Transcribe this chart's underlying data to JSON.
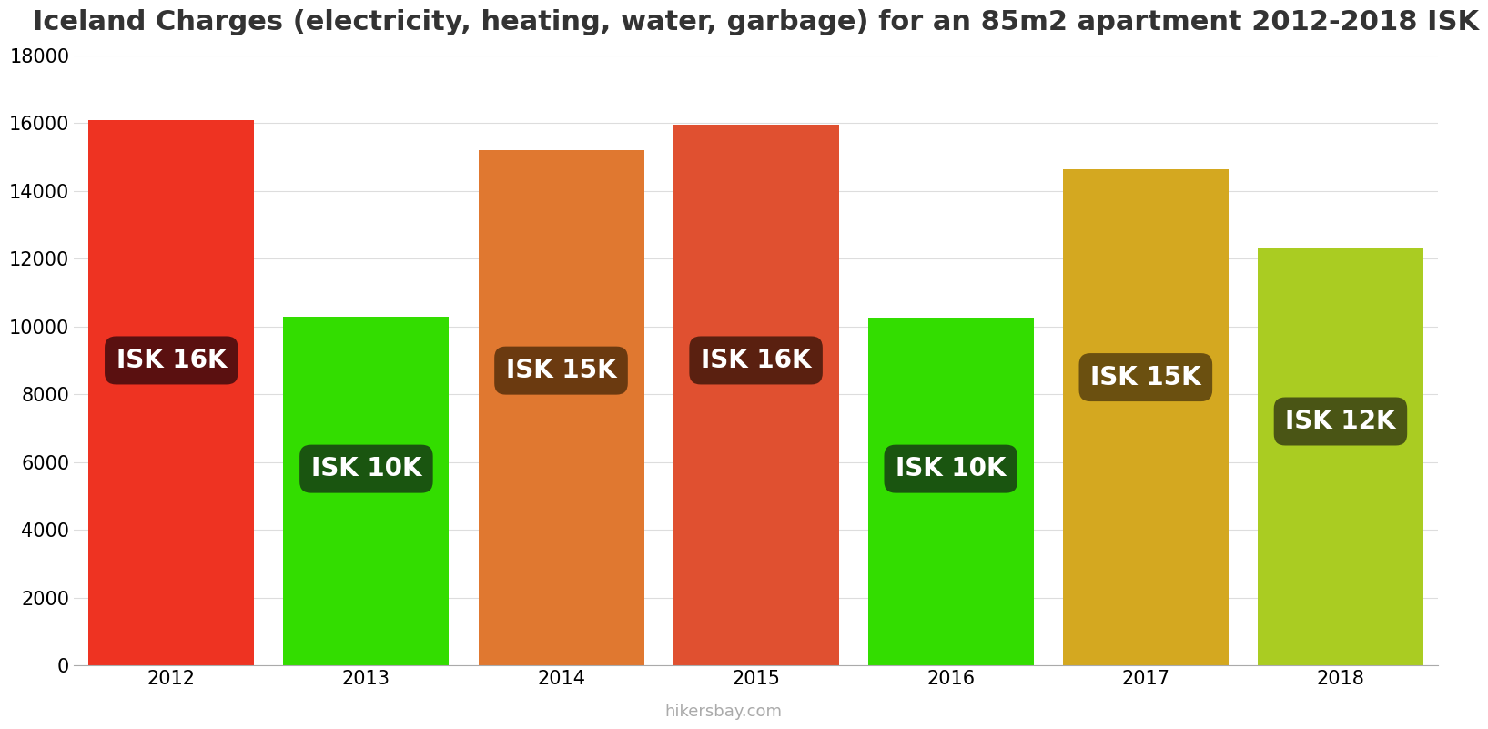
{
  "title": "Iceland Charges (electricity, heating, water, garbage) for an 85m2 apartment 2012-2018 ISK",
  "years": [
    2012,
    2013,
    2014,
    2015,
    2016,
    2017,
    2018
  ],
  "values": [
    16100,
    10300,
    15200,
    15950,
    10250,
    14650,
    12300
  ],
  "bar_colors": [
    "#ee3322",
    "#33dd00",
    "#e07830",
    "#e05030",
    "#33dd00",
    "#d4a820",
    "#aacc22"
  ],
  "label_bg_colors": [
    "#5a1010",
    "#1a5510",
    "#6b3a10",
    "#5a2010",
    "#1a5510",
    "#6b5010",
    "#4a5515"
  ],
  "labels": [
    "ISK 16K",
    "ISK 10K",
    "ISK 15K",
    "ISK 16K",
    "ISK 10K",
    "ISK 15K",
    "ISK 12K"
  ],
  "label_y_abs": [
    9000,
    5800,
    8700,
    9000,
    5800,
    8500,
    7200
  ],
  "ylim": [
    0,
    18000
  ],
  "yticks": [
    0,
    2000,
    4000,
    6000,
    8000,
    10000,
    12000,
    14000,
    16000,
    18000
  ],
  "footer": "hikersbay.com",
  "title_fontsize": 22,
  "tick_fontsize": 15,
  "label_fontsize": 20,
  "bar_width": 0.85
}
